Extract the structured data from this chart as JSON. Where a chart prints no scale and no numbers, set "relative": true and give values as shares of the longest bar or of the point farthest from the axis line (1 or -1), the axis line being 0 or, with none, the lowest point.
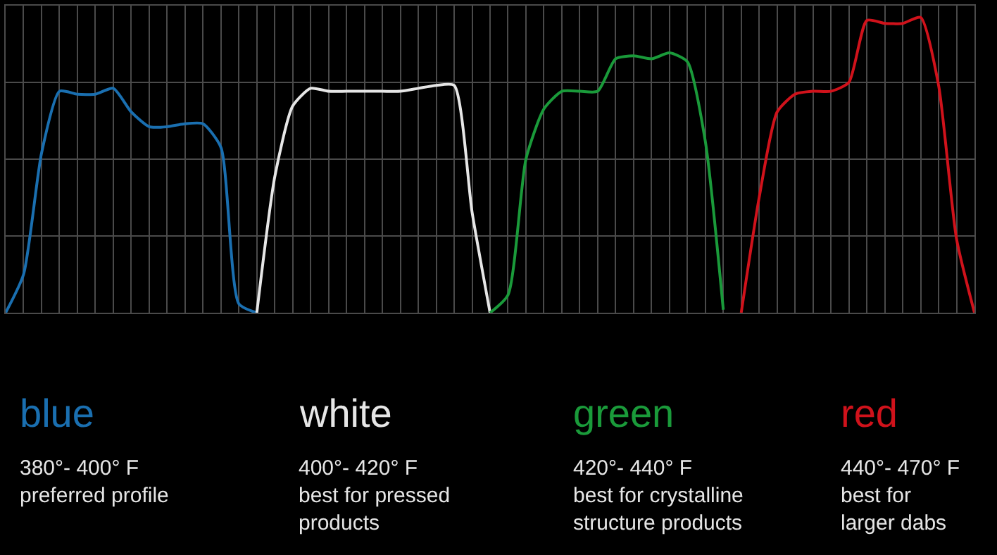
{
  "chart_data": {
    "type": "line",
    "relative": true,
    "grid": true,
    "legend": false,
    "tick_labels": false,
    "categories": [
      null,
      null,
      null,
      null,
      null,
      null,
      null,
      null,
      null,
      null,
      null,
      null,
      null,
      null,
      null,
      null,
      null,
      null,
      null,
      null,
      null,
      null,
      null,
      null,
      null,
      null,
      null,
      null,
      null,
      null,
      null,
      null,
      null,
      null,
      null,
      null,
      null,
      null,
      null,
      null,
      null,
      null,
      null,
      null,
      null,
      null,
      null,
      null,
      null,
      null,
      null,
      null,
      null,
      null,
      null
    ],
    "series": [
      {
        "name": "blue",
        "color": "#1a6fb0",
        "values": [
          0,
          0.13,
          0.54,
          0.75,
          0.74,
          0.74,
          0.76,
          0.68,
          0.63,
          0.63,
          0.64,
          0.64,
          0.56,
          0.03,
          0,
          null,
          null,
          null,
          null,
          null,
          null,
          null,
          null,
          null,
          null,
          null,
          null,
          null,
          null,
          null,
          null,
          null,
          null,
          null,
          null,
          null,
          null,
          null,
          null,
          null,
          null,
          null,
          null,
          null,
          null,
          null,
          null,
          null,
          null,
          null,
          null,
          null,
          null,
          null,
          null
        ]
      },
      {
        "name": "white",
        "color": "#e6e6e6",
        "values": [
          null,
          null,
          null,
          null,
          null,
          null,
          null,
          null,
          null,
          null,
          null,
          null,
          null,
          null,
          0,
          0.46,
          0.7,
          0.76,
          0.75,
          0.75,
          0.75,
          0.75,
          0.75,
          0.76,
          0.77,
          0.77,
          0.34,
          0,
          null,
          null,
          null,
          null,
          null,
          null,
          null,
          null,
          null,
          null,
          null,
          null,
          null,
          null,
          null,
          null,
          null,
          null,
          null,
          null,
          null,
          null,
          null,
          null,
          null,
          null,
          null
        ]
      },
      {
        "name": "green",
        "color": "#1a9a3a",
        "values": [
          null,
          null,
          null,
          null,
          null,
          null,
          null,
          null,
          null,
          null,
          null,
          null,
          null,
          null,
          null,
          null,
          null,
          null,
          null,
          null,
          null,
          null,
          null,
          null,
          null,
          null,
          null,
          0,
          0.06,
          0.52,
          0.69,
          0.75,
          0.75,
          0.75,
          0.86,
          0.87,
          0.86,
          0.88,
          0.85,
          0.58,
          0.01,
          null,
          null,
          null,
          null,
          null,
          null,
          null,
          null,
          null,
          null,
          null,
          null,
          null,
          null
        ]
      },
      {
        "name": "red",
        "color": "#d0121b",
        "values": [
          null,
          null,
          null,
          null,
          null,
          null,
          null,
          null,
          null,
          null,
          null,
          null,
          null,
          null,
          null,
          null,
          null,
          null,
          null,
          null,
          null,
          null,
          null,
          null,
          null,
          null,
          null,
          null,
          null,
          null,
          null,
          null,
          null,
          null,
          null,
          null,
          null,
          null,
          null,
          null,
          null,
          0,
          0.39,
          0.68,
          0.74,
          0.75,
          0.75,
          0.78,
          0.99,
          0.98,
          0.98,
          1.0,
          0.77,
          0.25,
          0
        ]
      }
    ],
    "annotations": [
      "380°- 400° F\npreferred profile",
      "400°- 420° F\nbest for pressed\nproducts",
      "420°- 440° F\nbest for crystalline\nstructure products",
      "440°- 470° F\nbest for\nlarger dabs"
    ]
  }
}
